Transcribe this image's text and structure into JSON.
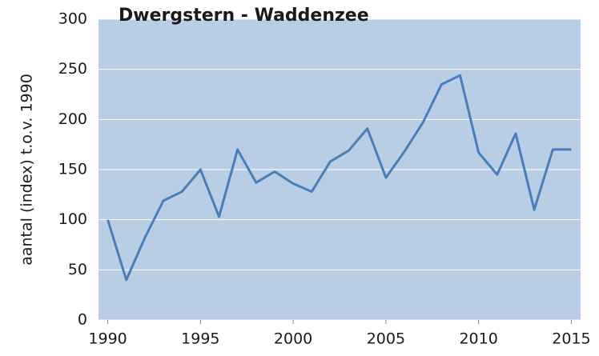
{
  "chart_data": {
    "type": "line",
    "title": "Dwergstern - Waddenzee",
    "y_label": "aantal (index) t.o.v. 1990",
    "x": [
      1990,
      1991,
      1992,
      1993,
      1994,
      1995,
      1996,
      1997,
      1998,
      1999,
      2000,
      2001,
      2002,
      2003,
      2004,
      2005,
      2006,
      2007,
      2008,
      2009,
      2010,
      2011,
      2012,
      2013,
      2014,
      2015
    ],
    "series": [
      {
        "name": "Dwergstern",
        "color": "#4a7ebb",
        "values": [
          100,
          40,
          82,
          119,
          128,
          150,
          103,
          170,
          137,
          148,
          136,
          128,
          158,
          169,
          191,
          142,
          168,
          197,
          235,
          244,
          167,
          145,
          186,
          110,
          170,
          170
        ]
      }
    ],
    "xlim": [
      1989.5,
      2015.5
    ],
    "xticks": [
      1990,
      1995,
      2000,
      2005,
      2010,
      2015
    ],
    "ylim": [
      0,
      300
    ],
    "yticks": [
      0,
      50,
      100,
      150,
      200,
      250,
      300
    ],
    "grid": true,
    "background": "#b9cde5"
  }
}
